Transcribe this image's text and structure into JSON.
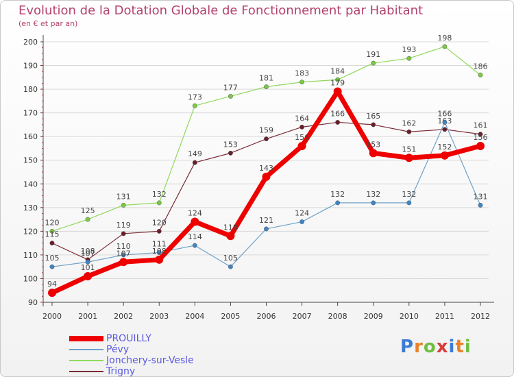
{
  "header": {
    "title": "Evolution de la Dotation Globale de Fonctionnement par Habitant",
    "subtitle": "(en € et par an)"
  },
  "logo": {
    "text": "Proxiti",
    "colors": [
      "#3a7bd5",
      "#e8832a",
      "#6fbf3f",
      "#d93b3b",
      "#3a7bd5",
      "#e8832a",
      "#6fbf3f"
    ]
  },
  "chart_data": {
    "type": "line",
    "x": [
      "2000",
      "2001",
      "2002",
      "2003",
      "2004",
      "2005",
      "2006",
      "2007",
      "2008",
      "2009",
      "2010",
      "2011",
      "2012"
    ],
    "ylim": [
      90,
      200
    ],
    "yticks": [
      90,
      100,
      110,
      120,
      130,
      140,
      150,
      160,
      170,
      180,
      190,
      200
    ],
    "grid": "horizontal",
    "legend_position": "bottom-left",
    "series": [
      {
        "name": "Jonchery-sur-Vesle",
        "color": "#8fd95a",
        "point_color": "#7ac943",
        "width": 1.2,
        "values": [
          120,
          125,
          131,
          132,
          173,
          177,
          181,
          183,
          184,
          191,
          193,
          198,
          186
        ]
      },
      {
        "name": "Trigny",
        "color": "#7a2a35",
        "point_color": "#6b1e2a",
        "width": 1.2,
        "values": [
          115,
          108,
          119,
          120,
          149,
          153,
          159,
          164,
          166,
          165,
          162,
          163,
          161
        ]
      },
      {
        "name": "Pévy",
        "color": "#6ea1c9",
        "point_color": "#3f86c4",
        "width": 1.2,
        "values": [
          105,
          107,
          110,
          111,
          114,
          105,
          121,
          124,
          132,
          132,
          132,
          166,
          131
        ]
      },
      {
        "name": "PROUILLY",
        "color": "#ee0000",
        "point_color": "#ee0000",
        "width": 7,
        "values": [
          94,
          101,
          107,
          108,
          124,
          118,
          143,
          156,
          179,
          153,
          151,
          152,
          156
        ]
      }
    ],
    "legend_order": [
      "PROUILLY",
      "Pévy",
      "Jonchery-sur-Vesle",
      "Trigny"
    ]
  }
}
